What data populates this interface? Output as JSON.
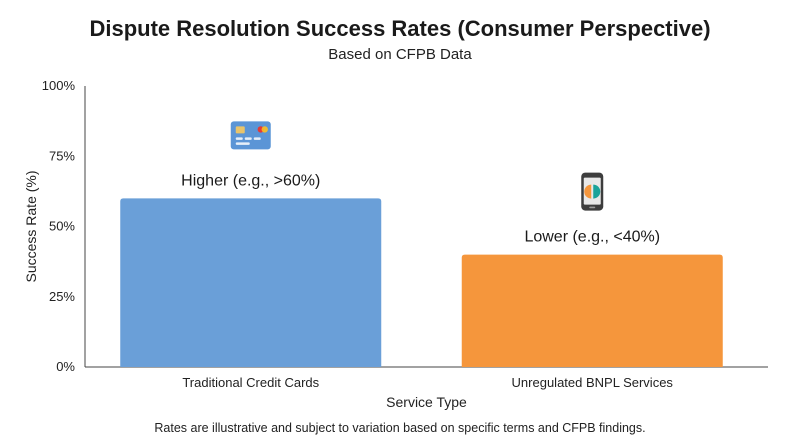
{
  "chart_data": {
    "type": "bar",
    "title": "Dispute Resolution Success Rates (Consumer Perspective)",
    "subtitle": "Based on CFPB Data",
    "xlabel": "Service Type",
    "ylabel": "Success Rate (%)",
    "ylim": [
      0,
      100
    ],
    "yticks": [
      0,
      25,
      50,
      75,
      100
    ],
    "ytick_labels": [
      "0%",
      "25%",
      "50%",
      "75%",
      "100%"
    ],
    "categories": [
      "Traditional Credit Cards",
      "Unregulated BNPL Services"
    ],
    "values": [
      60,
      40
    ],
    "data_labels": [
      "Higher (e.g., >60%)",
      "Lower (e.g., <40%)"
    ],
    "bar_colors": [
      "#6a9fd8",
      "#f5963c"
    ],
    "bar_icons": [
      "credit-card-icon",
      "smartphone-icon"
    ],
    "grid": false,
    "footnote": "Rates are illustrative and subject to variation based on specific terms and CFPB findings."
  }
}
